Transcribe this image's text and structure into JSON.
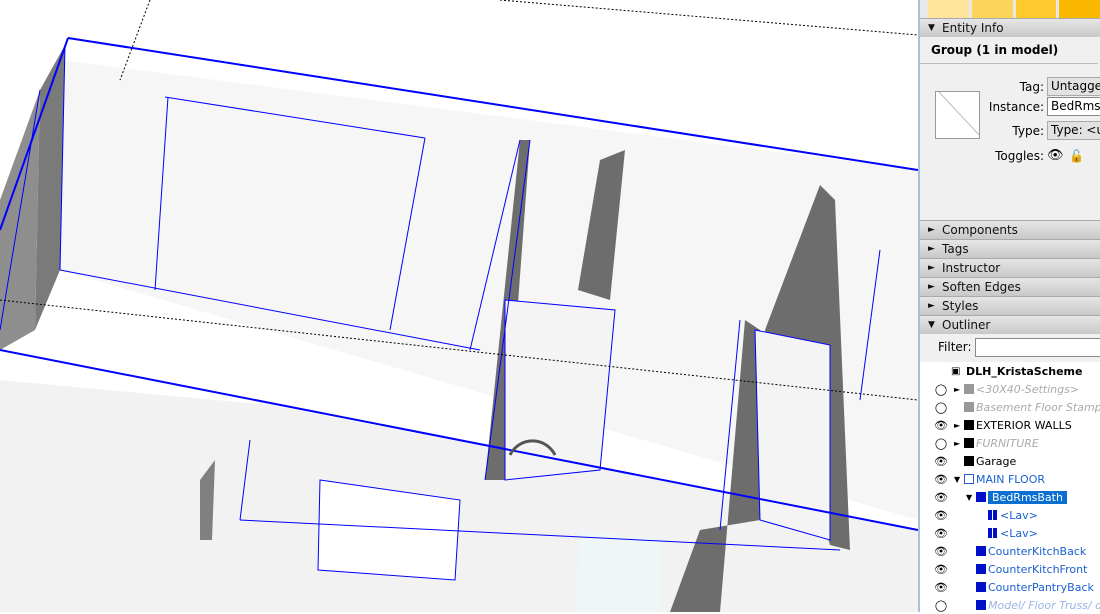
{
  "swatch_colors": [
    "#fee49a",
    "#fdd45a",
    "#fdc92c",
    "#fbb800"
  ],
  "entity_info": {
    "header": "Entity Info",
    "title": "Group (1 in model)",
    "tag_label": "Tag:",
    "tag_value": "Untagged",
    "instance_label": "Instance:",
    "instance_value": "BedRmsBath",
    "type_label": "Type:",
    "type_value": "Type: <undefined>",
    "toggles_label": "Toggles:"
  },
  "trays": [
    "Components",
    "Tags",
    "Instructor",
    "Soften Edges",
    "Styles"
  ],
  "outliner": {
    "header": "Outliner",
    "filter_label": "Filter:",
    "filter_value": "",
    "model": "DLH_KristaScheme",
    "items": [
      {
        "label": "<30X40-Settings>",
        "visible": false,
        "expand": "collapsed",
        "icon": "component-locked",
        "style": "hidden",
        "indent": 0
      },
      {
        "label": "Basement Floor Stamp",
        "visible": false,
        "expand": "none",
        "icon": "group-locked",
        "style": "hidden",
        "indent": 0
      },
      {
        "label": "EXTERIOR WALLS",
        "visible": true,
        "expand": "collapsed",
        "icon": "group",
        "style": "normal",
        "indent": 0
      },
      {
        "label": "FURNITURE",
        "visible": false,
        "expand": "collapsed",
        "icon": "group",
        "style": "hidden",
        "indent": 0
      },
      {
        "label": "Garage",
        "visible": true,
        "expand": "none",
        "icon": "group",
        "style": "normal",
        "indent": 0
      },
      {
        "label": "MAIN FLOOR",
        "visible": true,
        "expand": "expanded",
        "icon": "group-open",
        "style": "open",
        "indent": 0
      },
      {
        "label": "BedRmsBath",
        "visible": true,
        "expand": "expanded",
        "icon": "group-blue",
        "style": "selected",
        "indent": 1
      },
      {
        "label": "<Lav>",
        "visible": true,
        "expand": "none",
        "icon": "component",
        "style": "blue",
        "indent": 2
      },
      {
        "label": "<Lav>",
        "visible": true,
        "expand": "none",
        "icon": "component",
        "style": "blue",
        "indent": 2
      },
      {
        "label": "CounterKitchBack",
        "visible": true,
        "expand": "none",
        "icon": "group-blue",
        "style": "blue",
        "indent": 1
      },
      {
        "label": "CounterKitchFront",
        "visible": true,
        "expand": "none",
        "icon": "group-blue",
        "style": "blue",
        "indent": 1
      },
      {
        "label": "CounterPantryBack",
        "visible": true,
        "expand": "none",
        "icon": "group-blue",
        "style": "blue",
        "indent": 1
      },
      {
        "label": "Model/ Floor Truss/ data",
        "visible": false,
        "expand": "none",
        "icon": "group-blue",
        "style": "hiddenblue",
        "indent": 1
      }
    ]
  }
}
